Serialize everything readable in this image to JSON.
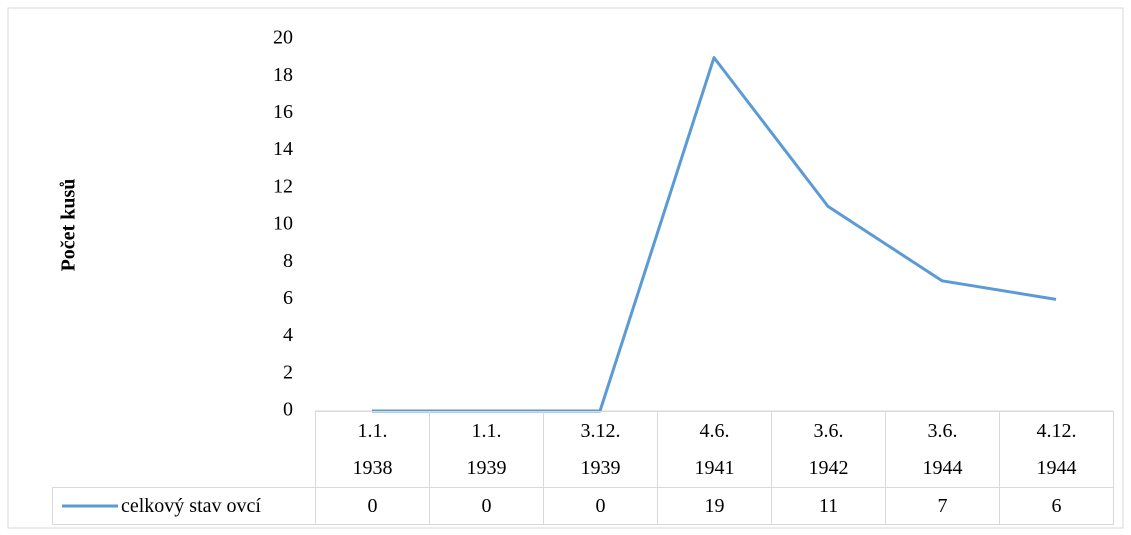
{
  "chart_data": {
    "type": "line",
    "y_label": "Počet kusů",
    "categories": [
      "1.1. 1938",
      "1.1. 1939",
      "3.12. 1939",
      "4.6. 1941",
      "3.6. 1942",
      "3.6. 1944",
      "4.12. 1944"
    ],
    "series": [
      {
        "name": "celkový stav ovcí",
        "color": "#5b9bd5",
        "values": [
          0,
          0,
          0,
          19,
          11,
          7,
          6
        ]
      }
    ],
    "ylim": [
      0,
      20
    ],
    "yticks": [
      0,
      2,
      4,
      6,
      8,
      10,
      12,
      14,
      16,
      18,
      20
    ],
    "grid": false
  }
}
